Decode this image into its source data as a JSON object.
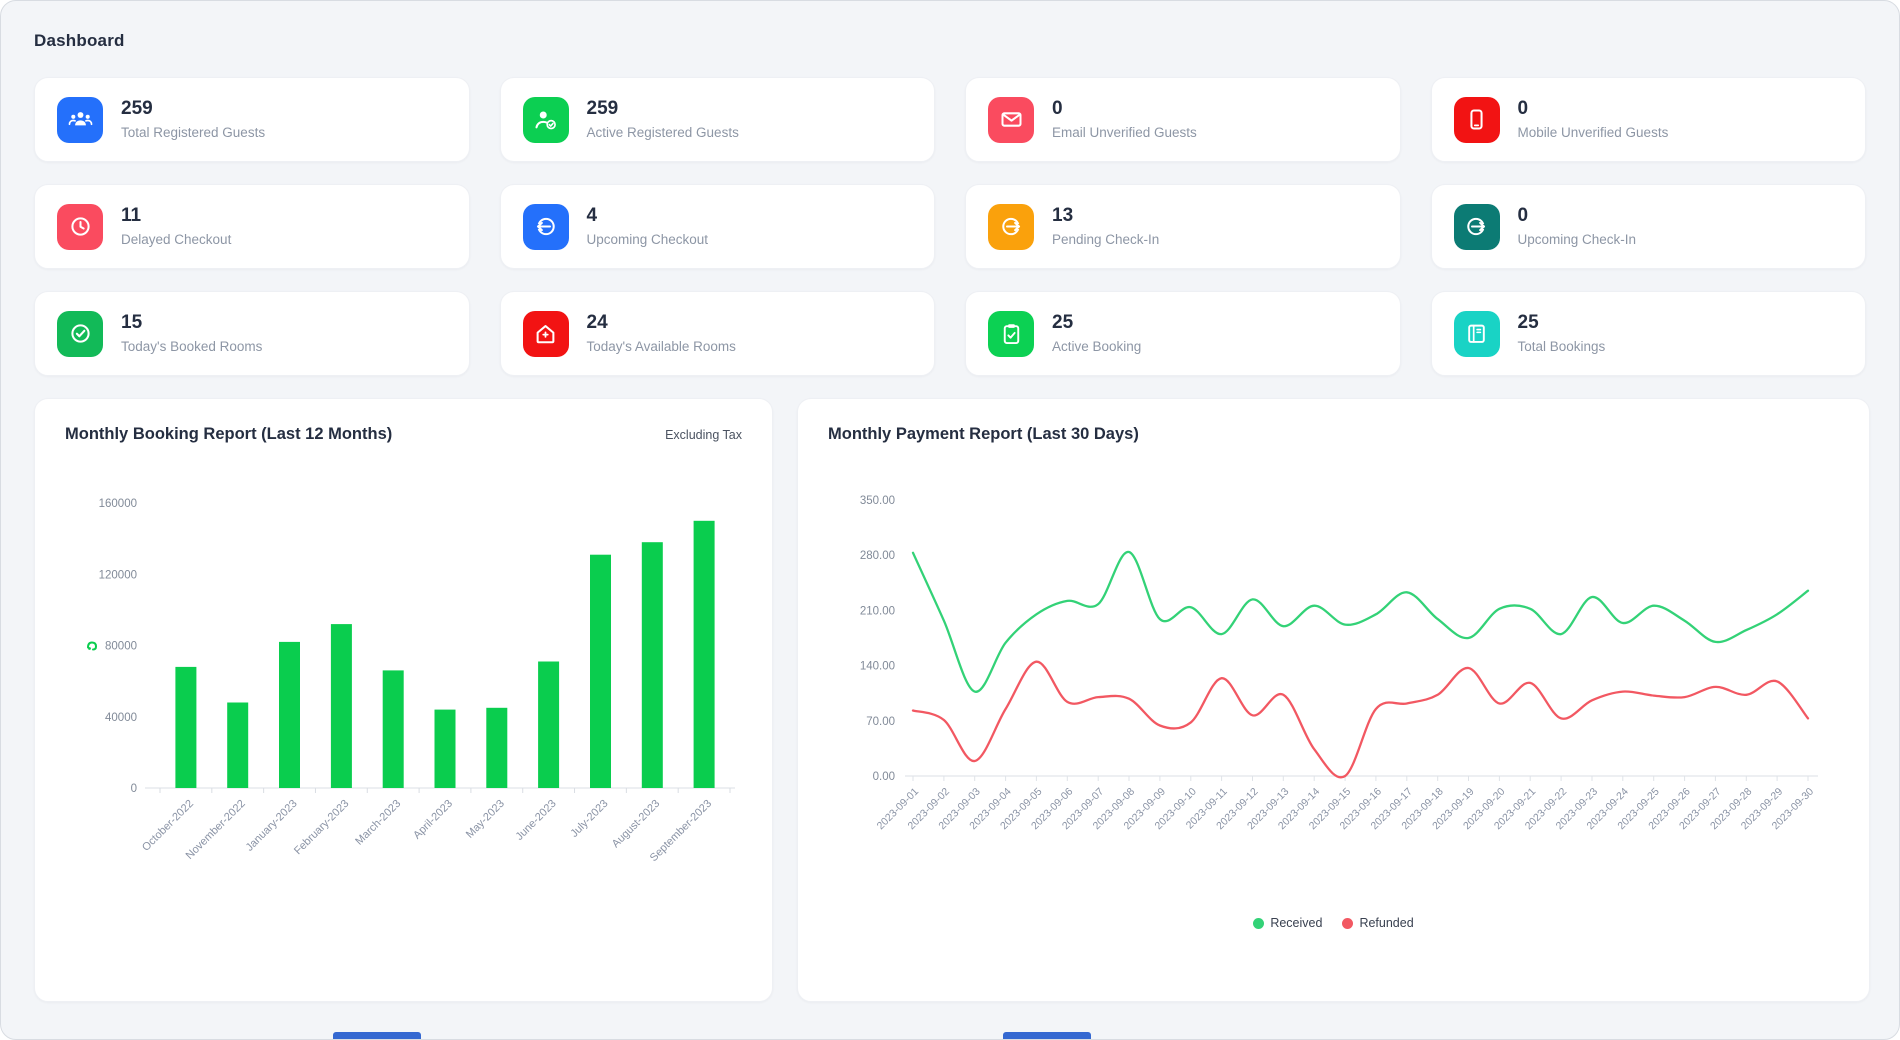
{
  "page": {
    "title": "Dashboard"
  },
  "stats": [
    {
      "value": "259",
      "label": "Total Registered Guests",
      "icon": "users-group-icon",
      "color": "#2470fb"
    },
    {
      "value": "259",
      "label": "Active Registered Guests",
      "icon": "user-check-icon",
      "color": "#0ccf52"
    },
    {
      "value": "0",
      "label": "Email Unverified Guests",
      "icon": "envelope-icon",
      "color": "#fa4b5f"
    },
    {
      "value": "0",
      "label": "Mobile Unverified Guests",
      "icon": "smartphone-icon",
      "color": "#f21313"
    },
    {
      "value": "11",
      "label": "Delayed Checkout",
      "icon": "clock-icon",
      "color": "#fa4b5f"
    },
    {
      "value": "4",
      "label": "Upcoming Checkout",
      "icon": "arrow-circle-left-icon",
      "color": "#2470fb"
    },
    {
      "value": "13",
      "label": "Pending Check-In",
      "icon": "arrow-circle-right-icon",
      "color": "#faa10c"
    },
    {
      "value": "0",
      "label": "Upcoming Check-In",
      "icon": "arrow-circle-right-icon",
      "color": "#0c7b74"
    },
    {
      "value": "15",
      "label": "Today's Booked Rooms",
      "icon": "check-circle-icon",
      "color": "#12ba58"
    },
    {
      "value": "24",
      "label": "Today's Available Rooms",
      "icon": "home-plus-icon",
      "color": "#f21313"
    },
    {
      "value": "25",
      "label": "Active Booking",
      "icon": "clipboard-check-icon",
      "color": "#0cd153"
    },
    {
      "value": "25",
      "label": "Total Bookings",
      "icon": "book-icon",
      "color": "#19d3c5"
    }
  ],
  "chart_data": [
    {
      "type": "bar",
      "title": "Monthly Booking Report (Last 12 Months)",
      "note": "Excluding Tax",
      "categories": [
        "October-2022",
        "November-2022",
        "January-2023",
        "February-2023",
        "March-2023",
        "April-2023",
        "May-2023",
        "June-2023",
        "July-2023",
        "August-2023",
        "September-2023"
      ],
      "values": [
        68000,
        48000,
        82000,
        92000,
        66000,
        44000,
        45000,
        71000,
        131000,
        138000,
        150000
      ],
      "bar_color": "#0acd4e",
      "xlabel": "",
      "ylabel": "",
      "ylim": [
        0,
        160000
      ],
      "yticks": [
        0,
        40000,
        80000,
        120000,
        160000
      ],
      "grid": false,
      "legend_position": "none",
      "currency_icon_color": "#0acd4e"
    },
    {
      "type": "line",
      "title": "Monthly Payment Report (Last 30 Days)",
      "x": [
        "2023-09-01",
        "2023-09-02",
        "2023-09-03",
        "2023-09-04",
        "2023-09-05",
        "2023-09-06",
        "2023-09-07",
        "2023-09-08",
        "2023-09-09",
        "2023-09-10",
        "2023-09-11",
        "2023-09-12",
        "2023-09-13",
        "2023-09-14",
        "2023-09-15",
        "2023-09-16",
        "2023-09-17",
        "2023-09-18",
        "2023-09-19",
        "2023-09-20",
        "2023-09-21",
        "2023-09-22",
        "2023-09-23",
        "2023-09-24",
        "2023-09-25",
        "2023-09-26",
        "2023-09-27",
        "2023-09-28",
        "2023-09-29",
        "2023-09-30"
      ],
      "series": [
        {
          "name": "Received",
          "color": "#33d277",
          "values": [
            283,
            197,
            107,
            169,
            205,
            222,
            218,
            284,
            199,
            214,
            180,
            224,
            190,
            216,
            192,
            205,
            233,
            199,
            175,
            212,
            212,
            180,
            227,
            194,
            216,
            197,
            170,
            185,
            205,
            235
          ]
        },
        {
          "name": "Refunded",
          "color": "#f25862",
          "values": [
            83,
            71,
            19,
            85,
            145,
            94,
            100,
            98,
            64,
            68,
            124,
            77,
            103,
            34,
            0,
            85,
            92,
            103,
            137,
            92,
            118,
            73,
            96,
            107,
            102,
            100,
            113,
            103,
            120,
            73
          ]
        }
      ],
      "xlabel": "",
      "ylabel": "",
      "ylim": [
        0,
        350
      ],
      "ytick_labels": [
        "0.00",
        "70.00",
        "140.00",
        "210.00",
        "280.00",
        "350.00"
      ],
      "grid": false,
      "legend_position": "bottom"
    }
  ]
}
